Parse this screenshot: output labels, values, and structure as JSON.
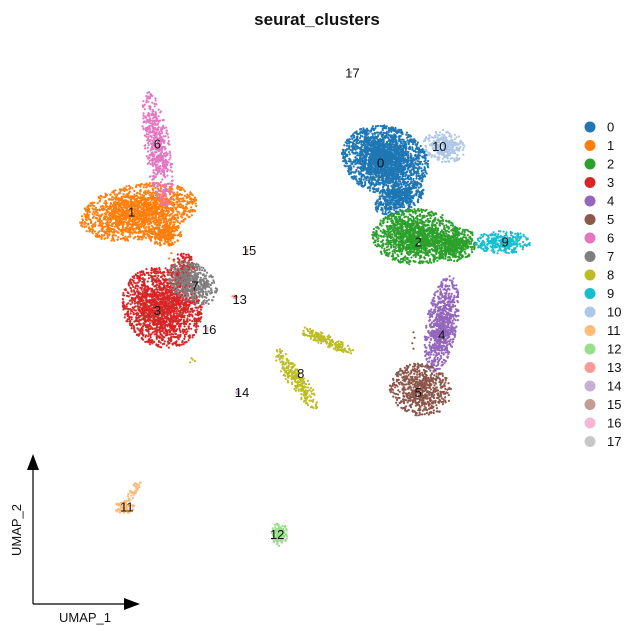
{
  "chart_data": {
    "type": "scatter",
    "title": "seurat_clusters",
    "xlabel": "UMAP_1",
    "ylabel": "UMAP_2",
    "grid": false,
    "legend_position": "right",
    "clusters": [
      {
        "id": "0",
        "color": "#1F77B4",
        "label_pos": [
          -2.0,
          5.5
        ],
        "blobs": [
          {
            "c": [
              -1.8,
              5.6
            ],
            "r": [
              1.55,
              1.05
            ],
            "rot": -10,
            "n": 2400
          },
          {
            "c": [
              -1.2,
              4.2
            ],
            "r": [
              0.9,
              0.45
            ],
            "rot": 20,
            "n": 500
          }
        ]
      },
      {
        "id": "1",
        "color": "#FF7F0E",
        "label_pos": [
          -12.6,
          3.7
        ],
        "blobs": [
          {
            "c": [
              -12.3,
              3.7
            ],
            "r": [
              2.1,
              0.85
            ],
            "rot": 8,
            "n": 1800
          },
          {
            "c": [
              -11.2,
              2.9
            ],
            "r": [
              0.6,
              0.4
            ],
            "rot": 0,
            "n": 250
          }
        ]
      },
      {
        "id": "2",
        "color": "#2CA02C",
        "label_pos": [
          -0.4,
          2.6
        ],
        "blobs": [
          {
            "c": [
              -0.5,
              2.8
            ],
            "r": [
              1.55,
              0.85
            ],
            "rot": 0,
            "n": 1500
          },
          {
            "c": [
              1.2,
              2.5
            ],
            "r": [
              0.8,
              0.5
            ],
            "rot": 10,
            "n": 400
          }
        ]
      },
      {
        "id": "3",
        "color": "#D62728",
        "label_pos": [
          -11.5,
          0.1
        ],
        "blobs": [
          {
            "c": [
              -11.3,
              0.2
            ],
            "r": [
              1.45,
              1.2
            ],
            "rot": -20,
            "n": 1800
          },
          {
            "c": [
              -10.4,
              1.5
            ],
            "r": [
              0.45,
              0.6
            ],
            "rot": 0,
            "n": 250
          }
        ]
      },
      {
        "id": "4",
        "color": "#9467BD",
        "label_pos": [
          0.6,
          -0.8
        ],
        "blobs": [
          {
            "c": [
              0.6,
              -0.4
            ],
            "r": [
              0.55,
              1.5
            ],
            "rot": -12,
            "n": 800
          }
        ]
      },
      {
        "id": "5",
        "color": "#8C564B",
        "label_pos": [
          -0.4,
          -2.9
        ],
        "blobs": [
          {
            "c": [
              -0.3,
              -2.8
            ],
            "r": [
              1.1,
              0.8
            ],
            "rot": -8,
            "n": 700
          }
        ]
      },
      {
        "id": "6",
        "color": "#E377C2",
        "label_pos": [
          -11.5,
          6.2
        ],
        "blobs": [
          {
            "c": [
              -11.5,
              6.0
            ],
            "r": [
              0.45,
              1.8
            ],
            "rot": 10,
            "n": 550
          }
        ]
      },
      {
        "id": "7",
        "color": "#7F7F7F",
        "label_pos": [
          -9.9,
          1.0
        ],
        "blobs": [
          {
            "c": [
              -10.0,
              1.1
            ],
            "r": [
              0.95,
              0.6
            ],
            "rot": -25,
            "n": 450
          }
        ]
      },
      {
        "id": "8",
        "color": "#BCBD22",
        "label_pos": [
          -5.4,
          -2.2
        ],
        "blobs": [
          {
            "c": [
              -5.6,
              -2.4
            ],
            "r": [
              0.3,
              1.2
            ],
            "rot": 40,
            "n": 250
          },
          {
            "c": [
              -4.3,
              -1.0
            ],
            "r": [
              1.1,
              0.18
            ],
            "rot": -20,
            "n": 180
          }
        ]
      },
      {
        "id": "9",
        "color": "#17BECF",
        "label_pos": [
          3.3,
          2.6
        ],
        "blobs": [
          {
            "c": [
              3.2,
              2.6
            ],
            "r": [
              1.0,
              0.35
            ],
            "rot": 0,
            "n": 330
          }
        ]
      },
      {
        "id": "10",
        "color": "#AEC7E8",
        "label_pos": [
          0.5,
          6.1
        ],
        "blobs": [
          {
            "c": [
              0.7,
              6.1
            ],
            "r": [
              0.75,
              0.5
            ],
            "rot": -10,
            "n": 350
          }
        ]
      },
      {
        "id": "11",
        "color": "#FFBB78",
        "label_pos": [
          -12.8,
          -7.1
        ],
        "blobs": [
          {
            "c": [
              -12.9,
              -7.1
            ],
            "r": [
              0.35,
              0.2
            ],
            "rot": 0,
            "n": 90
          },
          {
            "c": [
              -12.5,
              -6.5
            ],
            "r": [
              0.12,
              0.6
            ],
            "rot": -35,
            "n": 45
          }
        ]
      },
      {
        "id": "12",
        "color": "#98DF8A",
        "label_pos": [
          -6.4,
          -8.1
        ],
        "blobs": [
          {
            "c": [
              -6.3,
              -8.1
            ],
            "r": [
              0.28,
              0.38
            ],
            "rot": 0,
            "n": 130
          }
        ]
      },
      {
        "id": "13",
        "color": "#FF9896",
        "label_pos": [
          -8.0,
          0.5
        ],
        "blobs": [
          {
            "c": [
              -8.2,
              0.6
            ],
            "r": [
              0.1,
              0.08
            ],
            "rot": 0,
            "n": 12
          }
        ]
      },
      {
        "id": "14",
        "color": "#C5B0D5",
        "label_pos": [
          -7.9,
          -2.9
        ],
        "blobs": [
          {
            "c": [
              -8.1,
              -2.9
            ],
            "r": [
              0.1,
              0.06
            ],
            "rot": 0,
            "n": 10
          }
        ]
      },
      {
        "id": "15",
        "color": "#C49C94",
        "label_pos": [
          -7.6,
          2.3
        ],
        "blobs": [
          {
            "c": [
              -7.7,
              2.3
            ],
            "r": [
              0.06,
              0.08
            ],
            "rot": 0,
            "n": 8
          }
        ]
      },
      {
        "id": "16",
        "color": "#F7B6D2",
        "label_pos": [
          -9.3,
          -0.6
        ],
        "blobs": [
          {
            "c": [
              -9.4,
              -0.6
            ],
            "r": [
              0.08,
              0.06
            ],
            "rot": 0,
            "n": 8
          }
        ]
      },
      {
        "id": "17",
        "color": "#C7C7C7",
        "label_pos": [
          -3.2,
          8.8
        ],
        "blobs": [
          {
            "c": [
              -3.3,
              8.8
            ],
            "r": [
              0.08,
              0.05
            ],
            "rot": 0,
            "n": 6
          }
        ]
      }
    ],
    "extra_points": [
      {
        "cluster": "8",
        "pts": [
          [
            -10.0,
            -1.7
          ],
          [
            -10.1,
            -1.8
          ],
          [
            -9.9,
            -1.75
          ],
          [
            -10.05,
            -1.65
          ]
        ]
      },
      {
        "cluster": "5",
        "pts": [
          [
            -0.6,
            -0.7
          ],
          [
            -0.55,
            -0.9
          ],
          [
            -0.65,
            -1.1
          ],
          [
            -0.6,
            -1.3
          ]
        ]
      },
      {
        "cluster": "1",
        "pts": [
          [
            -10.9,
            2.2
          ],
          [
            -10.8,
            1.9
          ],
          [
            -11.0,
            2.0
          ]
        ]
      }
    ],
    "xlim": [
      -16.5,
      5.0
    ],
    "ylim": [
      -10.5,
      10.0
    ]
  }
}
